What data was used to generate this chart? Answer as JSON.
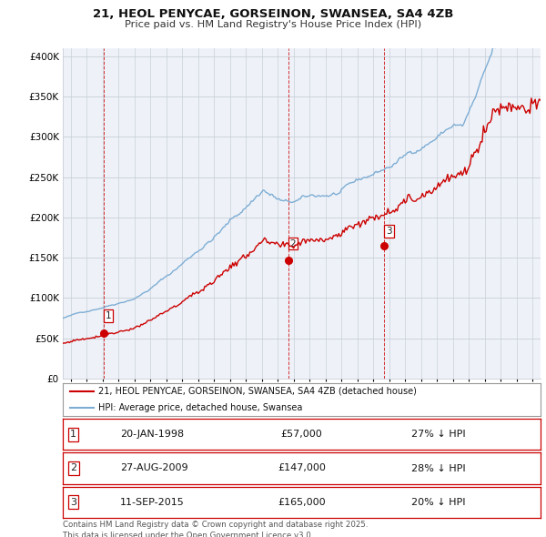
{
  "title1": "21, HEOL PENYCAE, GORSEINON, SWANSEA, SA4 4ZB",
  "title2": "Price paid vs. HM Land Registry's House Price Index (HPI)",
  "ylabel_ticks": [
    "£0",
    "£50K",
    "£100K",
    "£150K",
    "£200K",
    "£250K",
    "£300K",
    "£350K",
    "£400K"
  ],
  "ylabel_values": [
    0,
    50000,
    100000,
    150000,
    200000,
    250000,
    300000,
    350000,
    400000
  ],
  "ylim": [
    0,
    410000
  ],
  "xlim_start": 1995.5,
  "xlim_end": 2025.5,
  "hpi_color": "#7eadd4",
  "price_color": "#cc0000",
  "sales": [
    {
      "label": 1,
      "date_num": 1998.05,
      "price": 57000,
      "text": "20-JAN-1998",
      "amount": "£57,000",
      "pct": "27% ↓ HPI"
    },
    {
      "label": 2,
      "date_num": 2009.65,
      "price": 147000,
      "text": "27-AUG-2009",
      "amount": "£147,000",
      "pct": "28% ↓ HPI"
    },
    {
      "label": 3,
      "date_num": 2015.69,
      "price": 165000,
      "text": "11-SEP-2015",
      "amount": "£165,000",
      "pct": "20% ↓ HPI"
    }
  ],
  "legend_label_price": "21, HEOL PENYCAE, GORSEINON, SWANSEA, SA4 4ZB (detached house)",
  "legend_label_hpi": "HPI: Average price, detached house, Swansea",
  "footer": "Contains HM Land Registry data © Crown copyright and database right 2025.\nThis data is licensed under the Open Government Licence v3.0.",
  "chart_bg": "#eef2f8",
  "fig_bg": "#ffffff",
  "grid_color": "#c8cfd8"
}
